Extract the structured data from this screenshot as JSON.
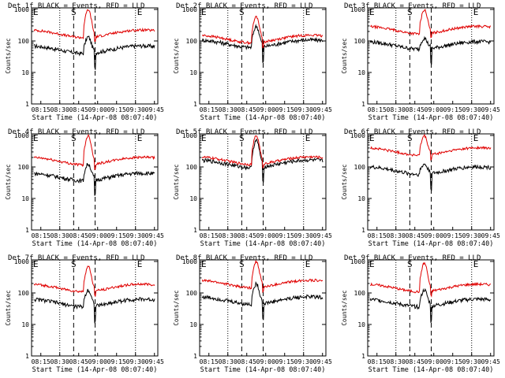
{
  "colors": {
    "events": "#000000",
    "lld": "#e00000",
    "axis": "#000000",
    "background": "#ffffff"
  },
  "shared": {
    "xlabel": "Start Time (14-Apr-08 08:07:40)",
    "ylabel": "Counts/sec",
    "x_tick_labels": [
      "08:15",
      "08:30",
      "08:45",
      "09:00",
      "09:15",
      "09:30",
      "09:45"
    ],
    "y_tick_labels": [
      "1",
      "10",
      "100",
      "1000"
    ],
    "marker_S": "S",
    "marker_E": "E"
  },
  "chart_data": [
    {
      "type": "line",
      "title": "Det 1f BLACK = Events, RED = LLD",
      "x_range": [
        "08:07:40",
        "09:47:40"
      ],
      "ylim": [
        1,
        1000
      ],
      "yscale": "log",
      "grid": "vertical dotted",
      "markers": {
        "dotted": [
          "08:30",
          "09:30"
        ],
        "dashed": [
          "08:41",
          "08:58"
        ],
        "S": "08:41",
        "E": "09:30",
        "E_left": "08:07:40"
      },
      "series": [
        {
          "name": "Events",
          "color": "#000000",
          "base": 55,
          "shape": "hump",
          "peak": 140
        },
        {
          "name": "LLD",
          "color": "#e00000",
          "base": 175,
          "shape": "hump",
          "peak": 1000
        }
      ]
    },
    {
      "type": "line",
      "title": "Det 2f BLACK = Events, RED = LLD",
      "x_range": [
        "08:07:40",
        "09:47:40"
      ],
      "ylim": [
        1,
        1000
      ],
      "yscale": "log",
      "grid": "vertical dotted",
      "markers": {
        "dotted": [
          "08:30",
          "09:30"
        ],
        "dashed": [
          "08:41",
          "08:58"
        ],
        "S": "08:41",
        "E": "09:30",
        "E_left": "08:07:40"
      },
      "series": [
        {
          "name": "Events",
          "color": "#000000",
          "base": 85,
          "shape": "hump",
          "peak": 300
        },
        {
          "name": "LLD",
          "color": "#e00000",
          "base": 120,
          "shape": "hump",
          "peak": 600
        }
      ]
    },
    {
      "type": "line",
      "title": "Det 3f BLACK = Events, RED = LLD",
      "x_range": [
        "08:07:40",
        "09:47:40"
      ],
      "ylim": [
        1,
        1000
      ],
      "yscale": "log",
      "grid": "vertical dotted",
      "markers": {
        "dotted": [
          "08:30",
          "09:30"
        ],
        "dashed": [
          "08:41",
          "08:58"
        ],
        "S": "08:41",
        "E": "09:30",
        "E_left": "08:07:40"
      },
      "series": [
        {
          "name": "Events",
          "color": "#000000",
          "base": 75,
          "shape": "hump",
          "peak": 130
        },
        {
          "name": "LLD",
          "color": "#e00000",
          "base": 230,
          "shape": "hump",
          "peak": 1000
        }
      ]
    },
    {
      "type": "line",
      "title": "Det 4f BLACK = Events, RED = LLD",
      "x_range": [
        "08:07:40",
        "09:47:40"
      ],
      "ylim": [
        1,
        1000
      ],
      "yscale": "log",
      "grid": "vertical dotted",
      "markers": {
        "dotted": [
          "08:30",
          "09:30"
        ],
        "dashed": [
          "08:41",
          "08:58"
        ],
        "S": "08:41",
        "E": "09:30",
        "E_left": "08:07:40"
      },
      "series": [
        {
          "name": "Events",
          "color": "#000000",
          "base": 50,
          "shape": "hump",
          "peak": 130
        },
        {
          "name": "LLD",
          "color": "#e00000",
          "base": 160,
          "shape": "hump",
          "peak": 1000
        }
      ]
    },
    {
      "type": "line",
      "title": "Det 5f BLACK = Events, RED = LLD",
      "x_range": [
        "08:07:40",
        "09:47:40"
      ],
      "ylim": [
        1,
        1000
      ],
      "yscale": "log",
      "grid": "vertical dotted",
      "markers": {
        "dotted": [
          "08:30",
          "09:30"
        ],
        "dashed": [
          "08:41",
          "08:58"
        ],
        "S": "08:41",
        "E": "09:30",
        "E_left": "08:07:40"
      },
      "series": [
        {
          "name": "Events",
          "color": "#000000",
          "base": 130,
          "shape": "hump",
          "peak": 700
        },
        {
          "name": "LLD",
          "color": "#e00000",
          "base": 165,
          "shape": "hump",
          "peak": 1000
        }
      ]
    },
    {
      "type": "line",
      "title": "Det 6f BLACK = Events, RED = LLD",
      "x_range": [
        "08:07:40",
        "09:47:40"
      ],
      "ylim": [
        1,
        1000
      ],
      "yscale": "log",
      "grid": "vertical dotted",
      "markers": {
        "dotted": [
          "08:30",
          "09:30"
        ],
        "dashed": [
          "08:41",
          "08:58"
        ],
        "S": "08:41",
        "E": "09:30",
        "E_left": "08:07:40"
      },
      "series": [
        {
          "name": "Events",
          "color": "#000000",
          "base": 80,
          "shape": "hump",
          "peak": 130
        },
        {
          "name": "LLD",
          "color": "#e00000",
          "base": 320,
          "shape": "hump",
          "peak": 1000
        }
      ]
    },
    {
      "type": "line",
      "title": "Det 7f BLACK = Events, RED = LLD",
      "x_range": [
        "08:07:40",
        "09:47:40"
      ],
      "ylim": [
        1,
        1000
      ],
      "yscale": "log",
      "grid": "vertical dotted",
      "markers": {
        "dotted": [
          "08:30",
          "09:30"
        ],
        "dashed": [
          "08:41",
          "08:58"
        ],
        "S": "08:41",
        "E": "09:30",
        "E_left": "08:07:40"
      },
      "series": [
        {
          "name": "Events",
          "color": "#000000",
          "base": 50,
          "shape": "hump",
          "peak": 130
        },
        {
          "name": "LLD",
          "color": "#e00000",
          "base": 150,
          "shape": "hump",
          "peak": 700
        }
      ]
    },
    {
      "type": "line",
      "title": "Det 8f BLACK = Events, RED = LLD",
      "x_range": [
        "08:07:40",
        "09:47:40"
      ],
      "ylim": [
        1,
        1000
      ],
      "yscale": "log",
      "grid": "vertical dotted",
      "markers": {
        "dotted": [
          "08:30",
          "09:30"
        ],
        "dashed": [
          "08:41",
          "08:58"
        ],
        "S": "08:41",
        "E": "09:30",
        "E_left": "08:07:40"
      },
      "series": [
        {
          "name": "Events",
          "color": "#000000",
          "base": 60,
          "shape": "hump",
          "peak": 200
        },
        {
          "name": "LLD",
          "color": "#e00000",
          "base": 200,
          "shape": "hump",
          "peak": 1000
        }
      ]
    },
    {
      "type": "line",
      "title": "Det 9f BLACK = Events, RED = LLD",
      "x_range": [
        "08:07:40",
        "09:47:40"
      ],
      "ylim": [
        1,
        1000
      ],
      "yscale": "log",
      "grid": "vertical dotted",
      "markers": {
        "dotted": [
          "08:30",
          "09:30"
        ],
        "dashed": [
          "08:41",
          "08:58"
        ],
        "S": "08:41",
        "E": "09:30",
        "E_left": "08:07:40"
      },
      "series": [
        {
          "name": "Events",
          "color": "#000000",
          "base": 50,
          "shape": "hump",
          "peak": 130
        },
        {
          "name": "LLD",
          "color": "#e00000",
          "base": 150,
          "shape": "hump",
          "peak": 900
        }
      ]
    }
  ]
}
